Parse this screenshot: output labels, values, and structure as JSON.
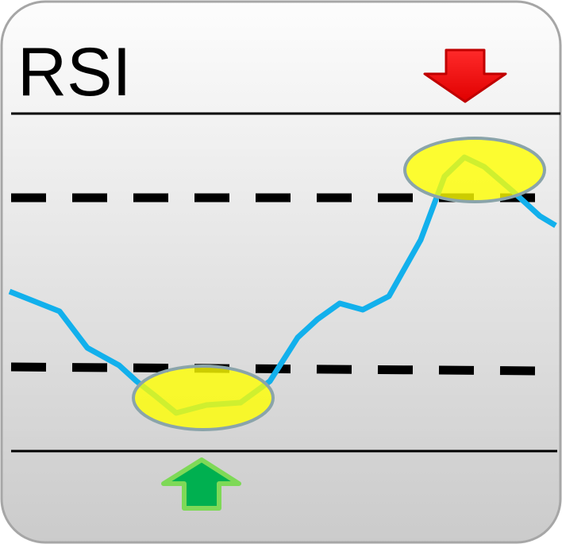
{
  "icon": {
    "title": "RSI",
    "colors": {
      "panel_border": "#a6a6a6",
      "panel_gradient_top": "#fdfdfd",
      "panel_gradient_bottom": "#cbcbcb",
      "rsi_line": "#12b0ec",
      "highlight_fill": "#ffff00",
      "highlight_stroke": "#8aa4aa",
      "sell_arrow": "#ee0000",
      "buy_arrow": "#00b050",
      "buy_arrow_outline": "#7ed957",
      "threshold_line": "#000000"
    },
    "indicator_icons": [
      "sell-signal-arrow-down-icon",
      "buy-signal-arrow-up-icon"
    ]
  }
}
